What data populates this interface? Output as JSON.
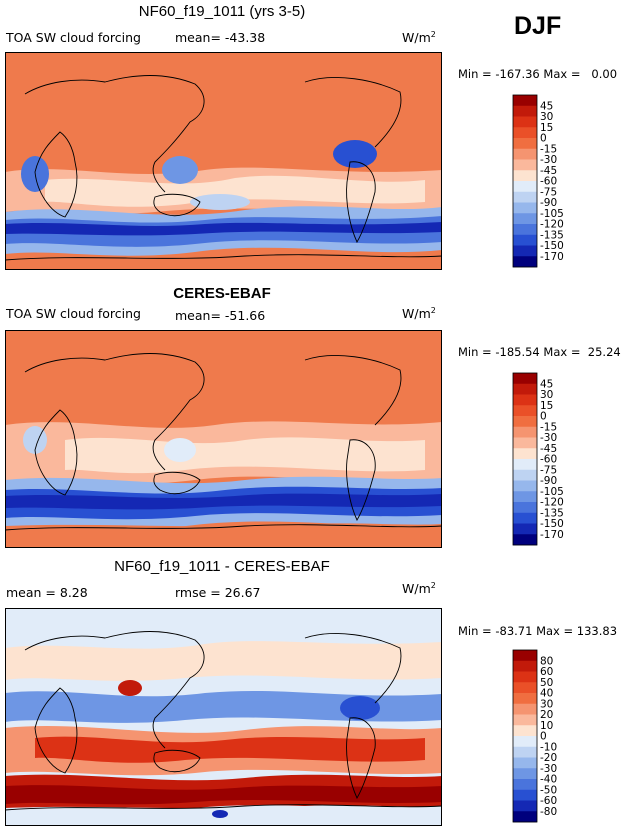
{
  "season": "DJF",
  "panels": [
    {
      "title": "NF60_f19_1011 (yrs 3-5)",
      "left_label": "TOA SW cloud forcing",
      "stat_label": "mean= -43.38",
      "units": "W/m",
      "units_exp": "2",
      "min_max": "Min = -167.36 Max =   0.00",
      "colorbar": {
        "labels": [
          "45",
          "30",
          "15",
          "0",
          "-15",
          "-30",
          "-45",
          "-60",
          "-75",
          "-90",
          "-105",
          "-120",
          "-135",
          "-150",
          "-170"
        ],
        "colors": [
          "#990000",
          "#c21a0a",
          "#dc3215",
          "#ea5028",
          "#f06e40",
          "#f59470",
          "#fab89c",
          "#fde3d0",
          "#e1ecf9",
          "#bed3f2",
          "#96b7ec",
          "#6e96e4",
          "#4a74dc",
          "#2850d2",
          "#1428b4",
          "#00007d"
        ]
      }
    },
    {
      "title": "CERES-EBAF",
      "left_label": "TOA SW cloud forcing",
      "stat_label": "mean= -51.66",
      "units": "W/m",
      "units_exp": "2",
      "min_max": "Min = -185.54 Max =  25.24",
      "colorbar": {
        "labels": [
          "45",
          "30",
          "15",
          "0",
          "-15",
          "-30",
          "-45",
          "-60",
          "-75",
          "-90",
          "-105",
          "-120",
          "-135",
          "-150",
          "-170"
        ],
        "colors": [
          "#990000",
          "#c21a0a",
          "#dc3215",
          "#ea5028",
          "#f06e40",
          "#f59470",
          "#fab89c",
          "#fde3d0",
          "#e1ecf9",
          "#bed3f2",
          "#96b7ec",
          "#6e96e4",
          "#4a74dc",
          "#2850d2",
          "#1428b4",
          "#00007d"
        ]
      }
    },
    {
      "title": "NF60_f19_1011 - CERES-EBAF",
      "left_label": "mean =   8.28",
      "stat_label": "rmse =  26.67",
      "units": "W/m",
      "units_exp": "2",
      "min_max": "Min = -83.71 Max = 133.83",
      "colorbar": {
        "labels": [
          "80",
          "60",
          "50",
          "40",
          "30",
          "20",
          "10",
          "0",
          "-10",
          "-20",
          "-30",
          "-40",
          "-50",
          "-60",
          "-80"
        ],
        "colors": [
          "#990000",
          "#c21a0a",
          "#dc3215",
          "#ea5028",
          "#f06e40",
          "#f59470",
          "#fab89c",
          "#fde3d0",
          "#e1ecf9",
          "#bed3f2",
          "#96b7ec",
          "#6e96e4",
          "#4a74dc",
          "#2850d2",
          "#1428b4",
          "#00007d"
        ]
      }
    }
  ]
}
